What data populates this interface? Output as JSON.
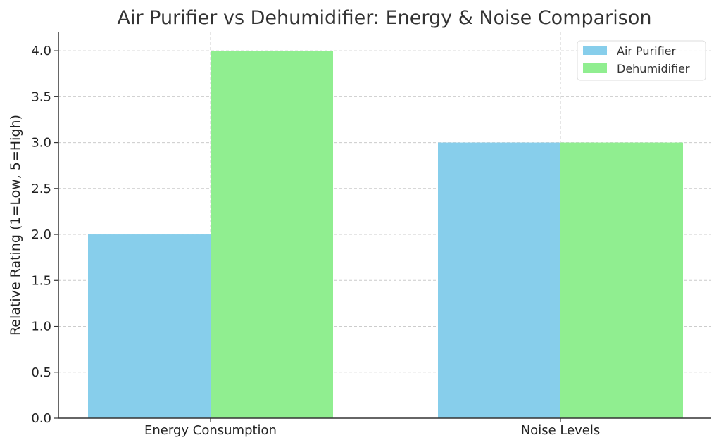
{
  "chart_data": {
    "type": "bar",
    "title": "Air Purifier vs Dehumidifier: Energy & Noise Comparison",
    "xlabel": "",
    "ylabel": "Relative Rating (1=Low, 5=High)",
    "categories": [
      "Energy Consumption",
      "Noise Levels"
    ],
    "series": [
      {
        "name": "Air Purifier",
        "values": [
          2,
          3
        ],
        "color": "#87ceeb"
      },
      {
        "name": "Dehumidifier",
        "values": [
          4,
          3
        ],
        "color": "#90ee90"
      }
    ],
    "ylim": [
      0,
      4.2
    ],
    "yticks": [
      0.0,
      0.5,
      1.0,
      1.5,
      2.0,
      2.5,
      3.0,
      3.5,
      4.0
    ],
    "ytick_labels": [
      "0.0",
      "0.5",
      "1.0",
      "1.5",
      "2.0",
      "2.5",
      "3.0",
      "3.5",
      "4.0"
    ],
    "grid": true,
    "legend_position": "top-right"
  }
}
